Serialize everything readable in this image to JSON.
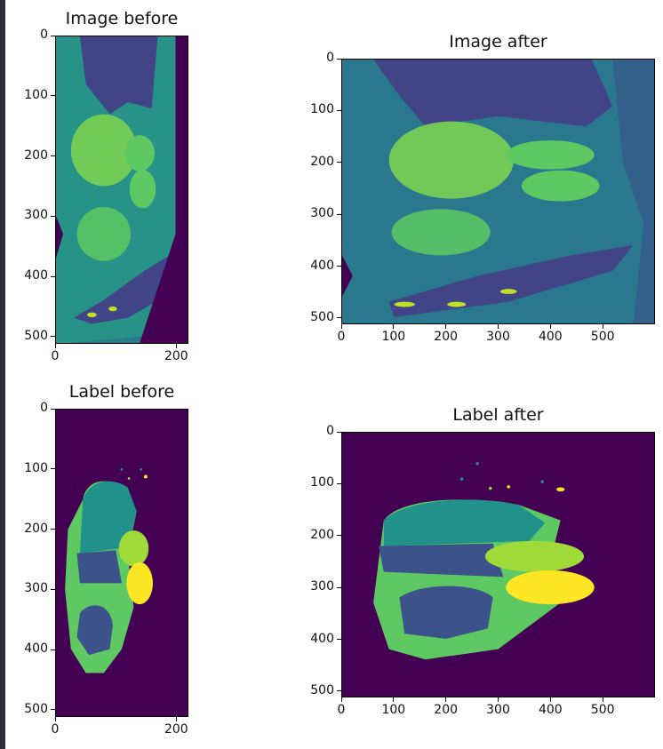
{
  "chart_data": [
    {
      "type": "heatmap",
      "title": "Image before",
      "x_ticks": [
        0,
        200
      ],
      "y_ticks": [
        0,
        100,
        200,
        300,
        400,
        500
      ],
      "xlim": [
        0,
        220
      ],
      "ylim": [
        512,
        0
      ],
      "colormap": "viridis"
    },
    {
      "type": "heatmap",
      "title": "Image after",
      "x_ticks": [
        0,
        100,
        200,
        300,
        400,
        500
      ],
      "y_ticks": [
        0,
        100,
        200,
        300,
        400,
        500
      ],
      "xlim": [
        0,
        600
      ],
      "ylim": [
        512,
        0
      ],
      "colormap": "viridis"
    },
    {
      "type": "heatmap",
      "title": "Label before",
      "x_ticks": [
        0,
        200
      ],
      "y_ticks": [
        0,
        100,
        200,
        300,
        400,
        500
      ],
      "xlim": [
        0,
        220
      ],
      "ylim": [
        512,
        0
      ],
      "colormap": "viridis"
    },
    {
      "type": "heatmap",
      "title": "Label after",
      "x_ticks": [
        0,
        100,
        200,
        300,
        400,
        500
      ],
      "y_ticks": [
        0,
        100,
        200,
        300,
        400,
        500
      ],
      "xlim": [
        0,
        600
      ],
      "ylim": [
        512,
        0
      ],
      "colormap": "viridis"
    }
  ],
  "colors": {
    "background": "#440154",
    "c1": "#3b528b",
    "c2": "#21918c",
    "c3": "#5ec962",
    "c4": "#a0da39",
    "c5": "#fde725",
    "ct_bg": "#2a788e",
    "ct_tissue": "#22a884"
  }
}
